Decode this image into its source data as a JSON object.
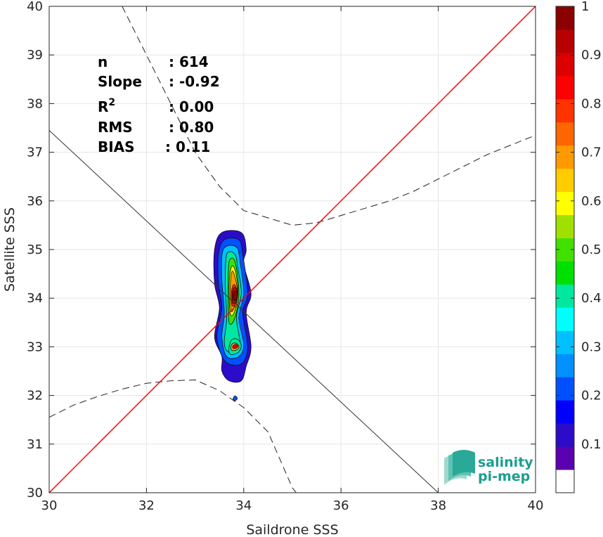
{
  "chart_data": {
    "type": "heatmap",
    "subtype": "density-contour scatter comparison",
    "xlabel": "Saildrone SSS",
    "ylabel": "Satellite SSS",
    "xlim": [
      30,
      40
    ],
    "ylim": [
      30,
      40
    ],
    "x_ticks": [
      30,
      32,
      34,
      36,
      38,
      40
    ],
    "y_ticks": [
      30,
      31,
      32,
      33,
      34,
      35,
      36,
      37,
      38,
      39,
      40
    ],
    "grid": true,
    "stats": [
      {
        "label": "n",
        "value": ": 614"
      },
      {
        "label": "Slope",
        "value": ": -0.92"
      },
      {
        "label": "R",
        "sup": "2",
        "value": ": 0.00"
      },
      {
        "label": "RMS",
        "value": ": 0.80"
      },
      {
        "label": "BIAS",
        "value": ": 0.11"
      }
    ],
    "identity_line": {
      "color": "#ff0000",
      "from": [
        30,
        30
      ],
      "to": [
        40,
        40
      ]
    },
    "regression_line": {
      "color": "#333333",
      "from": [
        30,
        37.45
      ],
      "to": [
        38.0,
        30.0
      ]
    },
    "confidence_upper": [
      [
        31.5,
        40.0
      ],
      [
        32.0,
        39.0
      ],
      [
        32.5,
        38.0
      ],
      [
        33.0,
        37.0
      ],
      [
        33.5,
        36.3
      ],
      [
        34.0,
        35.8
      ],
      [
        34.5,
        35.65
      ],
      [
        35.0,
        35.5
      ],
      [
        35.5,
        35.55
      ],
      [
        36.0,
        35.7
      ],
      [
        36.5,
        35.85
      ],
      [
        37.0,
        36.0
      ],
      [
        37.5,
        36.2
      ],
      [
        38.0,
        36.45
      ],
      [
        38.5,
        36.7
      ],
      [
        39.0,
        36.95
      ],
      [
        39.5,
        37.15
      ],
      [
        40.0,
        37.35
      ]
    ],
    "confidence_lower": [
      [
        30.0,
        31.55
      ],
      [
        30.5,
        31.8
      ],
      [
        31.0,
        31.98
      ],
      [
        31.5,
        32.13
      ],
      [
        32.0,
        32.25
      ],
      [
        32.5,
        32.3
      ],
      [
        33.0,
        32.32
      ],
      [
        33.5,
        32.1
      ],
      [
        34.0,
        31.75
      ],
      [
        34.5,
        31.25
      ],
      [
        35.0,
        30.1
      ],
      [
        35.08,
        30.0
      ]
    ],
    "density_levels": [
      {
        "level": 0.05,
        "points": [
          [
            33.55,
            32.5
          ],
          [
            33.55,
            32.8
          ],
          [
            33.4,
            33.2
          ],
          [
            33.5,
            33.8
          ],
          [
            33.4,
            34.3
          ],
          [
            33.4,
            35.0
          ],
          [
            33.55,
            35.35
          ],
          [
            33.95,
            35.35
          ],
          [
            34.05,
            35.0
          ],
          [
            34.0,
            34.7
          ],
          [
            34.15,
            34.1
          ],
          [
            34.05,
            33.7
          ],
          [
            34.15,
            33.0
          ],
          [
            34.05,
            32.6
          ],
          [
            33.95,
            32.3
          ],
          [
            33.7,
            32.3
          ]
        ]
      },
      {
        "level": 0.15,
        "points": [
          [
            33.62,
            32.7
          ],
          [
            33.45,
            33.2
          ],
          [
            33.55,
            33.8
          ],
          [
            33.48,
            34.3
          ],
          [
            33.48,
            34.9
          ],
          [
            33.6,
            35.2
          ],
          [
            33.9,
            35.2
          ],
          [
            33.98,
            34.9
          ],
          [
            34.08,
            34.1
          ],
          [
            33.98,
            33.7
          ],
          [
            34.08,
            33.0
          ],
          [
            33.95,
            32.65
          ]
        ]
      },
      {
        "level": 0.25,
        "points": [
          [
            33.65,
            32.8
          ],
          [
            33.55,
            33.2
          ],
          [
            33.6,
            33.7
          ],
          [
            33.55,
            34.4
          ],
          [
            33.58,
            35.0
          ],
          [
            33.85,
            35.05
          ],
          [
            33.93,
            34.7
          ],
          [
            34.0,
            34.1
          ],
          [
            33.9,
            33.6
          ],
          [
            34.0,
            33.05
          ],
          [
            33.9,
            32.8
          ]
        ]
      },
      {
        "level": 0.35,
        "points": [
          [
            33.67,
            32.9
          ],
          [
            33.6,
            33.1
          ],
          [
            33.65,
            33.6
          ],
          [
            33.62,
            34.3
          ],
          [
            33.65,
            34.9
          ],
          [
            33.82,
            34.9
          ],
          [
            33.88,
            34.6
          ],
          [
            33.95,
            34.1
          ],
          [
            33.85,
            33.6
          ],
          [
            33.93,
            33.05
          ],
          [
            33.85,
            32.9
          ]
        ]
      },
      {
        "level": 0.45,
        "points": [
          [
            33.7,
            33.5
          ],
          [
            33.68,
            34.2
          ],
          [
            33.7,
            34.75
          ],
          [
            33.82,
            34.75
          ],
          [
            33.9,
            34.1
          ],
          [
            33.82,
            33.6
          ]
        ]
      },
      {
        "level": 0.55,
        "points": [
          [
            33.72,
            33.7
          ],
          [
            33.7,
            34.3
          ],
          [
            33.75,
            34.65
          ],
          [
            33.83,
            34.55
          ],
          [
            33.88,
            34.1
          ],
          [
            33.8,
            33.7
          ]
        ]
      },
      {
        "level": 0.65,
        "points": [
          [
            33.74,
            33.75
          ],
          [
            33.72,
            34.2
          ],
          [
            33.76,
            34.55
          ],
          [
            33.83,
            34.4
          ],
          [
            33.87,
            34.1
          ],
          [
            33.8,
            33.8
          ]
        ]
      },
      {
        "level": 0.75,
        "points": [
          [
            33.76,
            33.85
          ],
          [
            33.75,
            34.15
          ],
          [
            33.8,
            34.28
          ],
          [
            33.86,
            34.15
          ],
          [
            33.84,
            33.9
          ]
        ]
      },
      {
        "level": 0.85,
        "points": [
          [
            33.77,
            33.9
          ],
          [
            33.77,
            34.15
          ],
          [
            33.82,
            34.22
          ],
          [
            33.87,
            34.12
          ],
          [
            33.84,
            33.93
          ]
        ]
      },
      {
        "level": 0.95,
        "points": [
          [
            33.79,
            33.96
          ],
          [
            33.79,
            34.12
          ],
          [
            33.84,
            34.15
          ],
          [
            33.87,
            34.08
          ],
          [
            33.85,
            33.98
          ]
        ]
      },
      {
        "level": 0.35,
        "points": [
          [
            33.72,
            32.85
          ],
          [
            33.7,
            33.0
          ],
          [
            33.76,
            33.15
          ],
          [
            33.88,
            33.15
          ],
          [
            33.95,
            33.02
          ],
          [
            33.88,
            32.88
          ]
        ]
      },
      {
        "level": 0.65,
        "points": [
          [
            33.75,
            32.93
          ],
          [
            33.74,
            33.02
          ],
          [
            33.8,
            33.08
          ],
          [
            33.88,
            33.05
          ],
          [
            33.9,
            32.98
          ],
          [
            33.84,
            32.93
          ]
        ]
      },
      {
        "level": 0.85,
        "points": [
          [
            33.78,
            32.97
          ],
          [
            33.78,
            33.02
          ],
          [
            33.84,
            33.05
          ],
          [
            33.88,
            33.01
          ],
          [
            33.84,
            32.97
          ]
        ]
      },
      {
        "level": 0.15,
        "points": [
          [
            33.78,
            31.93
          ],
          [
            33.82,
            31.99
          ],
          [
            33.87,
            31.94
          ],
          [
            33.82,
            31.89
          ]
        ]
      }
    ],
    "colorbar": {
      "range": [
        0,
        1
      ],
      "ticks": [
        "0.1",
        "0.2",
        "0.3",
        "0.4",
        "0.5",
        "0.6",
        "0.7",
        "0.8",
        "0.9",
        "1"
      ],
      "colors": [
        "#ffffff",
        "#5a00b0",
        "#2c0cc8",
        "#0000ff",
        "#0050ff",
        "#0090ff",
        "#00c0ff",
        "#00ffff",
        "#00e8a0",
        "#00e000",
        "#40e000",
        "#a0e000",
        "#ffff00",
        "#ffcc00",
        "#ff9900",
        "#ff6600",
        "#ff3300",
        "#ff0000",
        "#dd0000",
        "#b80000",
        "#8b0000"
      ]
    }
  },
  "logo": {
    "line1": "salinity",
    "line2": "pi-mep"
  }
}
